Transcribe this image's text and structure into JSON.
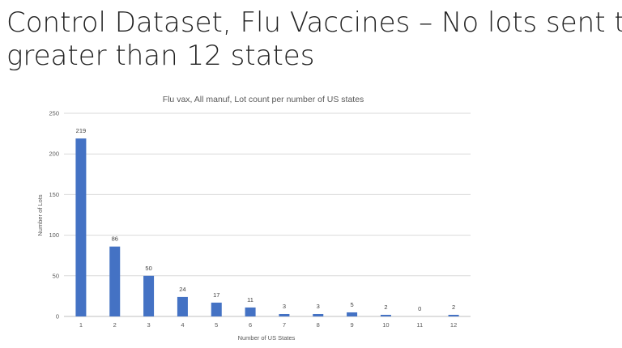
{
  "slide": {
    "title_line1": "Control Dataset, Flu Vaccines – No lots sent to",
    "title_line2": "greater than 12 states"
  },
  "colors": {
    "bar": "#4472c4"
  },
  "chart_data": {
    "type": "bar",
    "title": "Flu vax, All manuf, Lot count per number of US states",
    "xlabel": "Number of US States",
    "ylabel": "Number of Lots",
    "categories": [
      "1",
      "2",
      "3",
      "4",
      "5",
      "6",
      "7",
      "8",
      "9",
      "10",
      "11",
      "12"
    ],
    "values": [
      219,
      86,
      50,
      24,
      17,
      11,
      3,
      3,
      5,
      2,
      0,
      2
    ],
    "data_labels": [
      "219",
      "86",
      "50",
      "24",
      "17",
      "11",
      "3",
      "3",
      "5",
      "2",
      "0",
      "2"
    ],
    "ylim": [
      0,
      250
    ],
    "yticks": [
      0,
      50,
      100,
      150,
      200,
      250
    ],
    "grid": true,
    "legend": "none"
  }
}
